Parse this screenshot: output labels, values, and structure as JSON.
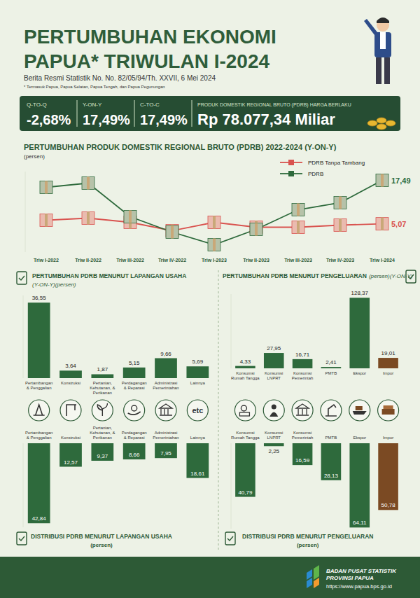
{
  "header": {
    "title_line1": "PERTUMBUHAN EKONOMI",
    "title_line2": "PAPUA* TRIWULAN I-2024",
    "subtitle": "Berita Resmi Statistik No. No. 82/05/94/Th. XXVII, 6 Mei 2024",
    "footnote": "* Termasuk Papua, Papua Selatan, Papua Tengah, dan Papua Pegunungan"
  },
  "stats": [
    {
      "label": "Q-TO-Q",
      "value": "-2,68%"
    },
    {
      "label": "Y-ON-Y",
      "value": "17,49%"
    },
    {
      "label": "C-TO-C",
      "value": "17,49%"
    },
    {
      "label": "PRODUK DOMESTIK REGIONAL BRUTO (PDRB) HARGA BERLAKU",
      "value": "Rp 78.077,34 Miliar"
    }
  ],
  "chart_data": [
    {
      "type": "line",
      "title": "PERTUMBUHAN PRODUK DOMESTIK REGIONAL BRUTO (PDRB) 2022-2024 (Y-ON-Y)",
      "subtitle": "(persen)",
      "categories": [
        "Triw I-2022",
        "Triw II-2022",
        "Triw III-2022",
        "Triw IV-2022",
        "Triw I-2023",
        "Triw II-2023",
        "Triw III-2023",
        "Triw IV-2023",
        "Triw I-2024"
      ],
      "series": [
        {
          "name": "PDRB Tanpa Tambang",
          "color": "#d9534f",
          "values": [
            6.1,
            6.7,
            5.5,
            3.1,
            5.5,
            4.1,
            4.1,
            4.7,
            5.07
          ],
          "value_labels": [
            null,
            null,
            null,
            null,
            null,
            null,
            null,
            null,
            "5,07"
          ]
        },
        {
          "name": "PDRB",
          "color": "#2e6a3c",
          "values": [
            15.5,
            16.7,
            7.1,
            2.7,
            -0.9,
            3.5,
            9.1,
            11.1,
            17.49
          ],
          "value_labels": [
            null,
            null,
            null,
            null,
            null,
            null,
            null,
            null,
            "17,49"
          ]
        }
      ],
      "ylim": [
        -3,
        20
      ],
      "marker": "square",
      "legend": "upper right",
      "data_labels": true,
      "tick_labels": "x"
    },
    {
      "type": "bar",
      "title": "PERTUMBUHAN PDRB MENURUT LAPANGAN USAHA",
      "subtitle": "(Y-ON-Y)(persen)",
      "categories": [
        "Pertambangan & Penggalian",
        "Konstruksi",
        "Pertanian, Kehutanan, & Perikanan",
        "Perdagangan & Reparasi",
        "Administrasi Pemerintahan",
        "Lainnya"
      ],
      "values": [
        36.55,
        3.64,
        1.87,
        5.15,
        9.66,
        5.69
      ],
      "value_labels": [
        "36,55",
        "3,64",
        "1,87",
        "5,15",
        "9,66",
        "5,69"
      ],
      "color": "#2e6a3c",
      "ylim": [
        0,
        40
      ],
      "data_labels": true,
      "tick_labels": "x"
    },
    {
      "type": "bar",
      "title": "PERTUMBUHAN PDRB MENURUT PENGELUARAN",
      "subtitle": "(persen)(Y-ON-Y)",
      "categories": [
        "Konsumsi Rumah Tangga",
        "Konsumsi LNPRT",
        "Konsumsi Pemerintah",
        "PMTB",
        "Ekspor",
        "Impor"
      ],
      "values": [
        4.33,
        27.95,
        16.71,
        2.41,
        128.37,
        19.01
      ],
      "value_labels": [
        "4,33",
        "27,95",
        "16,71",
        "2,41",
        "128,37",
        "19,01"
      ],
      "colors": [
        "#2e6a3c",
        "#2e6a3c",
        "#2e6a3c",
        "#2e6a3c",
        "#2e6a3c",
        "#7b4a23"
      ],
      "ylim": [
        0,
        135
      ],
      "data_labels": true,
      "tick_labels": "x"
    },
    {
      "type": "bar",
      "title": "DISTRIBUSI PDRB MENURUT LAPANGAN USAHA",
      "subtitle": "(persen)",
      "categories": [
        "Pertambangan & Penggalian",
        "Konstruksi",
        "Pertanian, Kehutanan, & Perikanan",
        "Perdagangan & Reparasi",
        "Administrasi Pemerintahan",
        "Lainnya"
      ],
      "values": [
        42.84,
        12.57,
        9.37,
        8.66,
        7.95,
        18.61
      ],
      "value_labels": [
        "42,84",
        "12,57",
        "9,37",
        "8,66",
        "7,95",
        "18,61"
      ],
      "color": "#2e6a3c",
      "ylim": [
        45,
        0
      ],
      "data_labels": true,
      "tick_labels": "x"
    },
    {
      "type": "bar",
      "title": "DISTRIBUSI PDRB MENURUT PENGELUARAN",
      "subtitle": "(persen)",
      "categories": [
        "Konsumsi Rumah Tangga",
        "Konsumsi LNPRT",
        "Konsumsi Pemerintah",
        "PMTB",
        "Ekspor",
        "Impor"
      ],
      "values": [
        40.79,
        2.25,
        16.59,
        28.13,
        64.11,
        50.78
      ],
      "value_labels": [
        "40,79",
        "2,25",
        "16,59",
        "28,13",
        "64,11",
        "50,78"
      ],
      "colors": [
        "#2e6a3c",
        "#2e6a3c",
        "#2e6a3c",
        "#2e6a3c",
        "#2e6a3c",
        "#7b4a23"
      ],
      "ylim": [
        65,
        0
      ],
      "data_labels": true,
      "tick_labels": "x"
    }
  ],
  "icons": {
    "lainnya": "etc"
  },
  "footer": {
    "org": "BADAN PUSAT STATISTIK",
    "region": "PROVINSI PAPUA",
    "url": "https://www.papua.bps.go.id"
  }
}
